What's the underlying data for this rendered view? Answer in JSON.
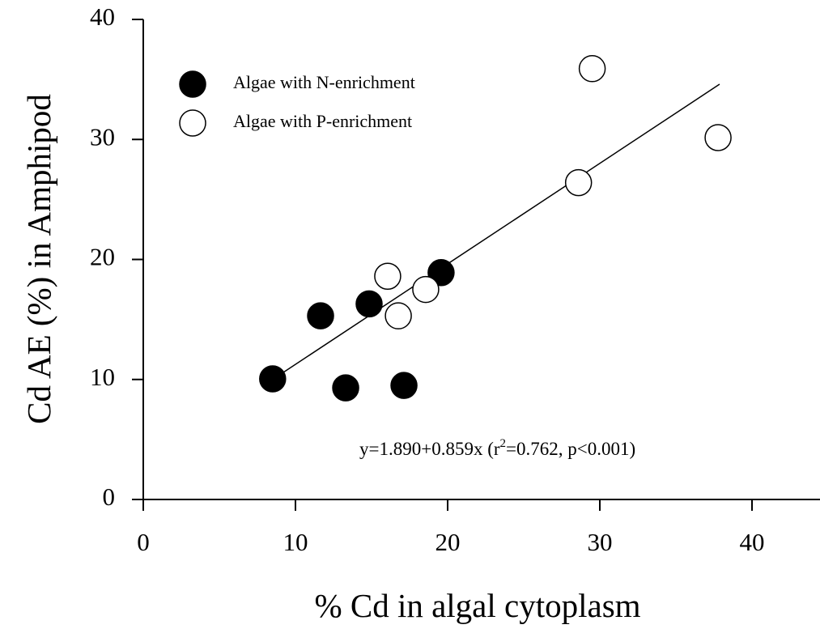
{
  "chart_data": {
    "type": "scatter",
    "x_label": "% Cd in algal cytoplasm",
    "y_label": "Cd AE (%) in Amphipod",
    "xlim": [
      0,
      44.5
    ],
    "ylim": [
      0,
      40
    ],
    "xticks": [
      0,
      10,
      20,
      30,
      40
    ],
    "yticks": [
      0,
      10,
      20,
      30,
      40
    ],
    "series": [
      {
        "name": "Algae with N-enrichment",
        "color": "#000000",
        "fill": "#000000",
        "x": [
          8.5,
          11.65,
          13.3,
          14.84,
          17.13,
          19.57
        ],
        "values": [
          10.05,
          15.3,
          9.3,
          16.3,
          9.5,
          18.9
        ]
      },
      {
        "name": "Algae with P-enrichment",
        "color": "#000000",
        "fill": "#ffffff",
        "x": [
          16.06,
          16.76,
          18.56,
          28.6,
          29.5,
          37.77
        ],
        "values": [
          18.6,
          15.3,
          17.5,
          26.4,
          35.9,
          30.15
        ]
      }
    ],
    "fit_line": {
      "x": [
        8.56,
        37.87
      ],
      "y": [
        10.05,
        34.6
      ]
    },
    "annotation": [
      "y=1.890+0.859x (r",
      "2",
      "=0.762, p<0.001)"
    ]
  }
}
